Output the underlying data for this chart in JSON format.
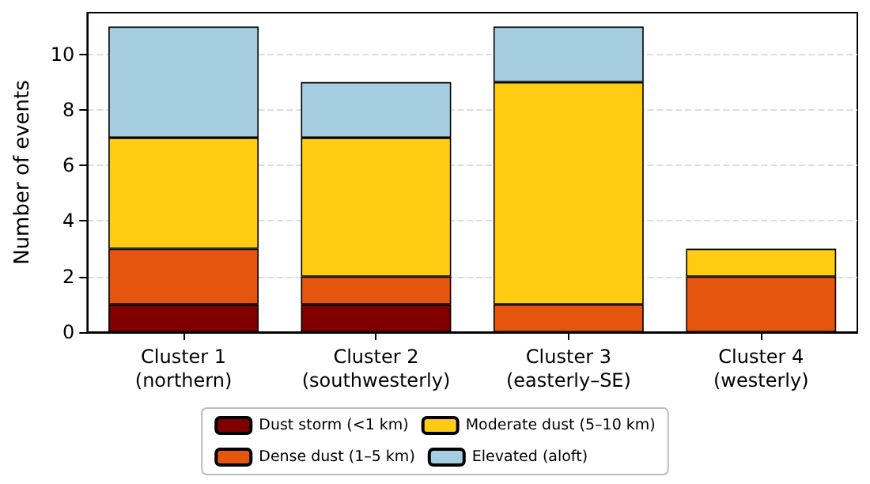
{
  "chart_data": {
    "type": "bar",
    "stacked": true,
    "ylabel": "Number of events",
    "categories": [
      "Cluster 1\n(northern)",
      "Cluster 2\n(southwesterly)",
      "Cluster 3\n(easterly–SE)",
      "Cluster 4\n(westerly)"
    ],
    "series": [
      {
        "name": "Dust storm (<1 km)",
        "color": "#800000",
        "values": [
          1,
          1,
          0,
          0
        ]
      },
      {
        "name": "Dense dust (1–5 km)",
        "color": "#e6550d",
        "values": [
          2,
          1,
          1,
          2
        ]
      },
      {
        "name": "Moderate dust (5–10 km)",
        "color": "#ffcc11",
        "values": [
          4,
          5,
          8,
          1
        ]
      },
      {
        "name": "Elevated (aloft)",
        "color": "#a6cee3",
        "values": [
          4,
          2,
          2,
          0
        ]
      }
    ],
    "ylim": [
      0,
      11.5
    ],
    "yticks": [
      0,
      2,
      4,
      6,
      8,
      10
    ],
    "grid": "y",
    "legend": "bottom"
  }
}
